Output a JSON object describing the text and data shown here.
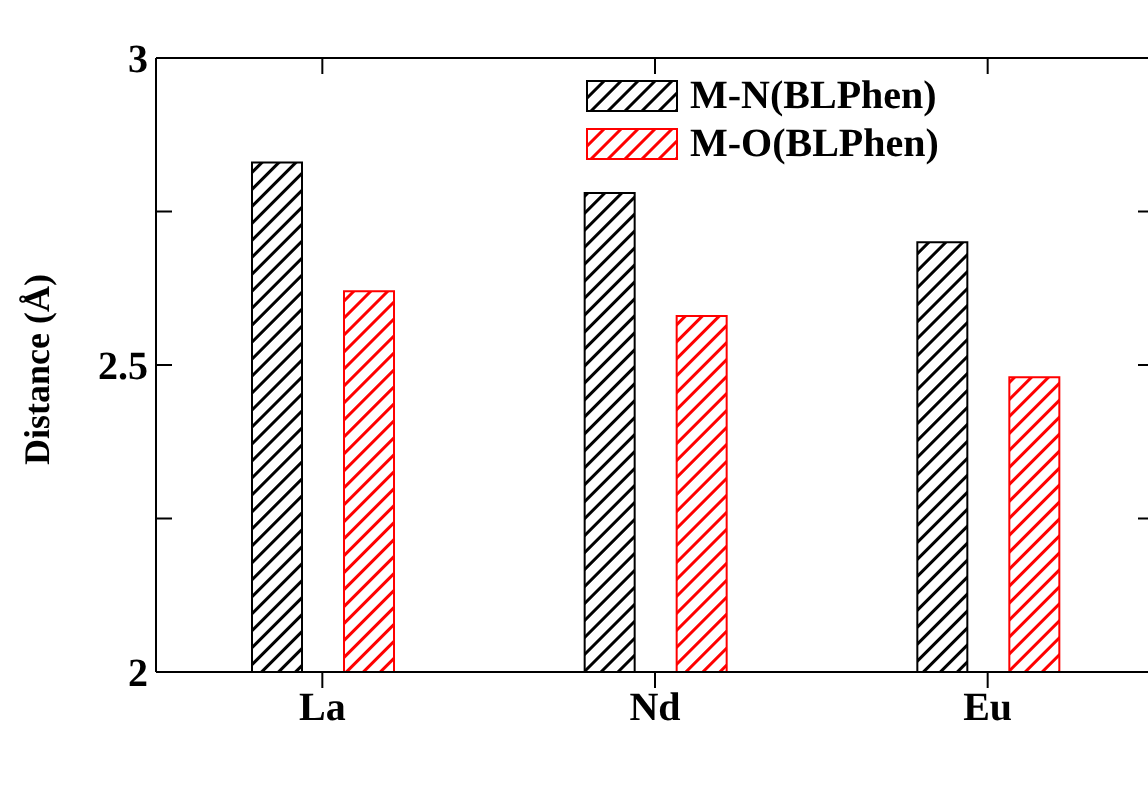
{
  "chart_data": {
    "type": "bar",
    "ylabel": "Distance (Å)",
    "categories": [
      "La",
      "Nd",
      "Eu"
    ],
    "series": [
      {
        "name": "M-N(BLPhen)",
        "color": "#000000",
        "values": [
          2.83,
          2.78,
          2.7
        ]
      },
      {
        "name": "M-O(BLPhen)",
        "color": "#ff0000",
        "values": [
          2.62,
          2.58,
          2.48
        ]
      }
    ],
    "ylim": [
      2,
      3
    ],
    "yticks": [
      2,
      {
        "value": 2.25,
        "label": null
      },
      2.5,
      {
        "value": 2.75,
        "label": null
      },
      3
    ],
    "grid": false,
    "legend": "top right"
  }
}
